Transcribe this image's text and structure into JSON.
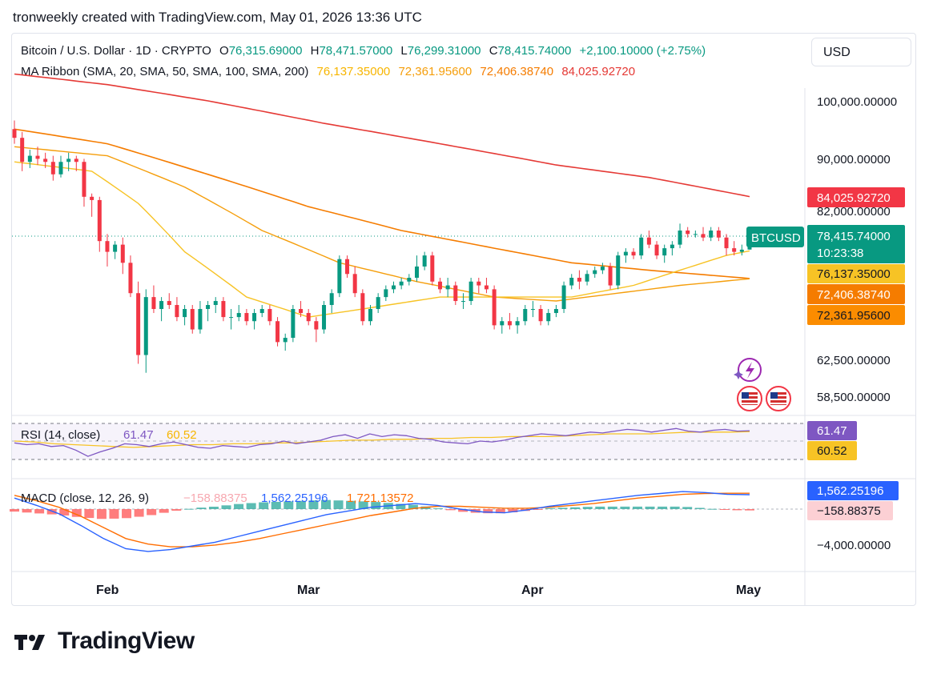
{
  "header": {
    "text": "tronweekly created with TradingView.com, May 01, 2026 13:36 UTC"
  },
  "symbol": {
    "name": "Bitcoin / U.S. Dollar · 1D · CRYPTO",
    "o_label": "O",
    "o": "76,315.69000",
    "h_label": "H",
    "h": "78,471.57000",
    "l_label": "L",
    "l": "76,299.31000",
    "c_label": "C",
    "c": "78,415.74000",
    "change": "+2,100.10000 (+2.75%)",
    "ticker": "BTCUSD",
    "countdown": "10:23:38"
  },
  "ma_ribbon": {
    "label": "MA Ribbon (SMA, 20, SMA, 50, SMA, 100, SMA, 200)",
    "values": [
      "76,137.35000",
      "72,361.95600",
      "72,406.38740",
      "84,025.92720"
    ]
  },
  "currency_button": "USD",
  "price_axis": {
    "ticks": [
      "100,000.00000",
      "90,000.00000",
      "82,000.00000",
      "62,500.00000",
      "58,500.00000"
    ]
  },
  "price_badges": {
    "ma200": "84,025.92720",
    "last": "78,415.74000",
    "ma20": "76,137.35000",
    "ma100": "72,406.38740",
    "ma50": "72,361.95600"
  },
  "rsi": {
    "label": "RSI (14, close)",
    "value": "61.47",
    "ma": "60.52"
  },
  "macd": {
    "label": "MACD (close, 12, 26, 9)",
    "hist": "−158.88375",
    "macd": "1,562.25196",
    "signal": "1,721.13572",
    "axis_tick": "−4,000.00000"
  },
  "time_axis": [
    "Feb",
    "Mar",
    "Apr",
    "May"
  ],
  "logo": "TradingView",
  "colors": {
    "up": "#089981",
    "down": "#f23645",
    "ma20": "#f7c325",
    "ma50": "#f59e0b",
    "ma100": "#f57c00",
    "ma200": "#e53935",
    "rsi": "#7e57c2",
    "macd": "#2962ff",
    "signal": "#ff6d00"
  },
  "chart_data": {
    "type": "candlestick",
    "x_range": [
      "2026-01-12",
      "2026-05-01"
    ],
    "price_scale": "log",
    "candles": [
      [
        0,
        95000,
        96500,
        92500,
        93500
      ],
      [
        1,
        93500,
        94500,
        88000,
        89500
      ],
      [
        2,
        89500,
        91500,
        88500,
        90500
      ],
      [
        3,
        90500,
        92000,
        89000,
        90000
      ],
      [
        4,
        90000,
        91000,
        88500,
        89500
      ],
      [
        5,
        89500,
        90500,
        86500,
        87500
      ],
      [
        6,
        87500,
        90500,
        87000,
        89500
      ],
      [
        7,
        89500,
        91000,
        88000,
        90000
      ],
      [
        8,
        90000,
        90500,
        88000,
        89500
      ],
      [
        9,
        89500,
        90000,
        82500,
        84000
      ],
      [
        10,
        84000,
        84500,
        81000,
        83500
      ],
      [
        11,
        83500,
        84000,
        76000,
        77500
      ],
      [
        12,
        77500,
        78500,
        74000,
        76000
      ],
      [
        13,
        76000,
        77500,
        75000,
        77000
      ],
      [
        14,
        77000,
        78000,
        73000,
        74500
      ],
      [
        15,
        74500,
        75500,
        70000,
        70500
      ],
      [
        16,
        70500,
        72000,
        62000,
        63000
      ],
      [
        17,
        63000,
        71000,
        61000,
        70000
      ],
      [
        18,
        70000,
        71500,
        68000,
        68500
      ],
      [
        19,
        68500,
        70000,
        67000,
        69500
      ],
      [
        20,
        69500,
        70500,
        68500,
        69000
      ],
      [
        21,
        69000,
        70000,
        67000,
        67500
      ],
      [
        22,
        67500,
        69000,
        66500,
        68500
      ],
      [
        23,
        68500,
        69000,
        65500,
        66000
      ],
      [
        24,
        66000,
        69500,
        65500,
        68500
      ],
      [
        25,
        68500,
        69500,
        67000,
        69000
      ],
      [
        26,
        69000,
        70000,
        68000,
        69500
      ],
      [
        27,
        69500,
        70000,
        67000,
        67500
      ],
      [
        28,
        67500,
        68500,
        66000,
        67500
      ],
      [
        29,
        67500,
        69000,
        67000,
        68000
      ],
      [
        30,
        68000,
        68500,
        66500,
        67000
      ],
      [
        31,
        67000,
        68500,
        66000,
        68000
      ],
      [
        32,
        68000,
        69000,
        67500,
        68500
      ],
      [
        33,
        68500,
        69000,
        66500,
        67000
      ],
      [
        34,
        67000,
        67500,
        64000,
        64500
      ],
      [
        35,
        64500,
        65500,
        63500,
        65000
      ],
      [
        36,
        65000,
        69000,
        64500,
        68500
      ],
      [
        37,
        68500,
        69500,
        67500,
        68000
      ],
      [
        38,
        68000,
        68500,
        66500,
        67000
      ],
      [
        39,
        67000,
        67500,
        64500,
        66000
      ],
      [
        40,
        66000,
        69500,
        65500,
        69000
      ],
      [
        41,
        69000,
        71000,
        68000,
        70500
      ],
      [
        42,
        70500,
        75500,
        70000,
        75000
      ],
      [
        43,
        75000,
        75500,
        72500,
        73000
      ],
      [
        44,
        73000,
        74000,
        70000,
        70500
      ],
      [
        45,
        70500,
        71000,
        66500,
        67000
      ],
      [
        46,
        67000,
        69000,
        66500,
        68500
      ],
      [
        47,
        68500,
        70500,
        68000,
        70000
      ],
      [
        48,
        70000,
        71500,
        69500,
        71000
      ],
      [
        49,
        71000,
        72000,
        70500,
        71500
      ],
      [
        50,
        71500,
        72500,
        71000,
        72000
      ],
      [
        51,
        72000,
        73000,
        71500,
        72500
      ],
      [
        52,
        72500,
        75500,
        72000,
        74000
      ],
      [
        53,
        74000,
        76000,
        73500,
        75500
      ],
      [
        54,
        75500,
        76000,
        71500,
        72000
      ],
      [
        55,
        72000,
        72500,
        70500,
        71000
      ],
      [
        56,
        71000,
        72500,
        70000,
        71500
      ],
      [
        57,
        71500,
        72000,
        69000,
        69500
      ],
      [
        58,
        69500,
        70500,
        68500,
        69500
      ],
      [
        59,
        69500,
        72500,
        69000,
        72000
      ],
      [
        60,
        72000,
        72500,
        70500,
        71500
      ],
      [
        61,
        71500,
        72500,
        70500,
        71000
      ],
      [
        62,
        71000,
        71500,
        66000,
        66500
      ],
      [
        63,
        66500,
        67500,
        65500,
        67000
      ],
      [
        64,
        67000,
        68000,
        66000,
        66500
      ],
      [
        65,
        66500,
        67500,
        65500,
        67000
      ],
      [
        66,
        67000,
        69000,
        66500,
        68500
      ],
      [
        67,
        68500,
        69500,
        67500,
        68500
      ],
      [
        68,
        68500,
        69000,
        66500,
        67000
      ],
      [
        69,
        67000,
        68500,
        66500,
        68000
      ],
      [
        70,
        68000,
        69000,
        67500,
        68500
      ],
      [
        71,
        68500,
        72000,
        68000,
        71500
      ],
      [
        72,
        71500,
        73000,
        71000,
        72500
      ],
      [
        73,
        72500,
        73500,
        71000,
        72000
      ],
      [
        74,
        72000,
        73500,
        71500,
        73000
      ],
      [
        75,
        73000,
        74000,
        72500,
        73500
      ],
      [
        76,
        73500,
        74500,
        73000,
        74000
      ],
      [
        77,
        74000,
        74500,
        71000,
        71500
      ],
      [
        78,
        71500,
        76000,
        71000,
        75500
      ],
      [
        79,
        75500,
        76500,
        74500,
        76000
      ],
      [
        80,
        76000,
        76500,
        75000,
        75500
      ],
      [
        81,
        75500,
        78500,
        75000,
        78000
      ],
      [
        82,
        78000,
        79000,
        76500,
        77000
      ],
      [
        83,
        77000,
        77500,
        75000,
        75500
      ],
      [
        84,
        75500,
        77000,
        74500,
        76500
      ],
      [
        85,
        76500,
        77500,
        75500,
        77000
      ],
      [
        86,
        77000,
        80000,
        76500,
        79000
      ],
      [
        87,
        79000,
        79500,
        78000,
        78500
      ],
      [
        88,
        78500,
        79000,
        78000,
        78500
      ],
      [
        89,
        78500,
        79500,
        77500,
        78000
      ],
      [
        90,
        78000,
        79500,
        77500,
        79000
      ],
      [
        91,
        79000,
        79500,
        77500,
        78000
      ],
      [
        92,
        78000,
        78500,
        75500,
        76500
      ],
      [
        93,
        76500,
        77500,
        75500,
        76000
      ],
      [
        94,
        76000,
        77000,
        75500,
        76300
      ],
      [
        95,
        76315.69,
        78471.57,
        76299.31,
        78415.74
      ]
    ],
    "ma20": [
      [
        0,
        89500
      ],
      [
        10,
        88000
      ],
      [
        16,
        83000
      ],
      [
        22,
        76000
      ],
      [
        30,
        70000
      ],
      [
        38,
        67500
      ],
      [
        45,
        68500
      ],
      [
        55,
        70000
      ],
      [
        65,
        70000
      ],
      [
        72,
        70000
      ],
      [
        80,
        71500
      ],
      [
        86,
        73500
      ],
      [
        92,
        75500
      ],
      [
        95,
        76137.35
      ]
    ],
    "ma50": [
      [
        0,
        92000
      ],
      [
        12,
        90500
      ],
      [
        22,
        85500
      ],
      [
        32,
        79000
      ],
      [
        42,
        74500
      ],
      [
        52,
        72000
      ],
      [
        62,
        70000
      ],
      [
        70,
        69500
      ],
      [
        78,
        70500
      ],
      [
        86,
        71500
      ],
      [
        95,
        72361.956
      ]
    ],
    "ma100": [
      [
        0,
        95000
      ],
      [
        12,
        92500
      ],
      [
        25,
        87500
      ],
      [
        38,
        82500
      ],
      [
        50,
        79000
      ],
      [
        62,
        76500
      ],
      [
        72,
        74500
      ],
      [
        82,
        73500
      ],
      [
        95,
        72406.3874
      ]
    ],
    "ma200": [
      [
        0,
        105000
      ],
      [
        12,
        103000
      ],
      [
        25,
        100000
      ],
      [
        40,
        96000
      ],
      [
        55,
        92500
      ],
      [
        70,
        89000
      ],
      [
        82,
        87000
      ],
      [
        95,
        84025.9272
      ]
    ],
    "rsi_series": [
      48,
      46,
      47,
      44,
      45,
      40,
      33,
      38,
      42,
      47,
      46,
      44,
      47,
      49,
      46,
      43,
      42,
      45,
      44,
      43,
      46,
      47,
      50,
      47,
      49,
      51,
      55,
      57,
      53,
      58,
      55,
      57,
      56,
      53,
      52,
      49,
      48,
      47,
      50,
      49,
      51,
      54,
      56,
      58,
      57,
      56,
      58,
      60,
      59,
      61,
      63,
      62,
      60,
      62,
      64,
      61,
      60,
      62,
      63,
      61,
      61.47
    ],
    "rsi_ma_series": [
      50,
      49,
      47,
      46,
      45,
      44,
      43,
      44,
      45,
      46,
      46,
      47,
      47,
      48,
      48,
      49,
      50,
      51,
      51,
      52,
      52,
      53,
      53,
      54,
      54,
      55,
      55,
      55,
      56,
      57,
      58,
      58,
      58,
      59,
      60,
      60,
      60,
      60.52
    ],
    "macd_series": [
      1200,
      400,
      -500,
      -1800,
      -3200,
      -4300,
      -4600,
      -4400,
      -4000,
      -3600,
      -3000,
      -2400,
      -1800,
      -1200,
      -600,
      -200,
      200,
      400,
      600,
      400,
      0,
      -300,
      -400,
      -100,
      300,
      600,
      900,
      1200,
      1500,
      1700,
      1900,
      1800,
      1600,
      1562.25
    ],
    "signal_series": [
      1500,
      900,
      200,
      -800,
      -2000,
      -3200,
      -3800,
      -4100,
      -4100,
      -3900,
      -3600,
      -3200,
      -2700,
      -2200,
      -1700,
      -1200,
      -700,
      -300,
      100,
      300,
      300,
      200,
      100,
      100,
      200,
      400,
      600,
      900,
      1200,
      1400,
      1600,
      1700,
      1720,
      1721.14
    ],
    "macd_hist_last": -158.88375
  }
}
